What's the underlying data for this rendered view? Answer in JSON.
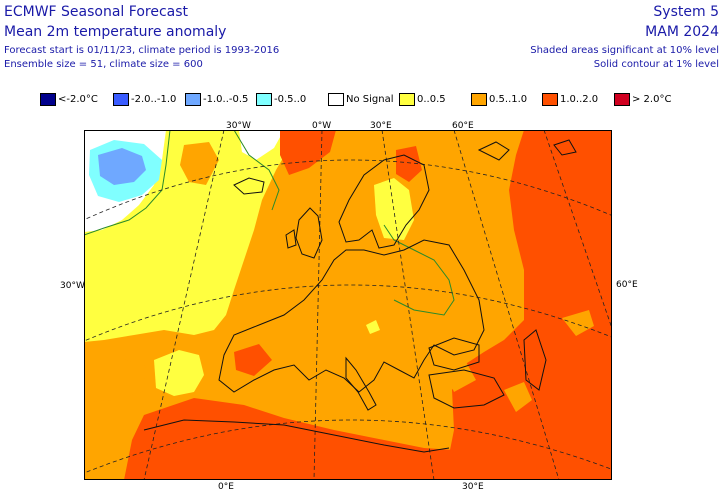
{
  "header": {
    "title": "ECMWF Seasonal Forecast",
    "subtitle": "Mean 2m temperature anomaly",
    "forecast_info": "Forecast start is 01/11/23, climate period is 1993-2016",
    "ensemble_info": "Ensemble size = 51, climate size = 600",
    "system": "System 5",
    "period": "MAM 2024",
    "shading_note": "Shaded areas significant at 10% level",
    "contour_note": "Solid contour at 1% level"
  },
  "legend": [
    {
      "label": "<-2.0°C",
      "color": "#00008c"
    },
    {
      "label": "-2.0..-1.0",
      "color": "#3a5cff"
    },
    {
      "label": "-1.0..-0.5",
      "color": "#6fa8ff"
    },
    {
      "label": "-0.5..0",
      "color": "#80ffff"
    },
    {
      "label": "No Signal",
      "color": "#ffffff"
    },
    {
      "label": "0..0.5",
      "color": "#ffff40"
    },
    {
      "label": "0.5..1.0",
      "color": "#ffa500"
    },
    {
      "label": "1.0..2.0",
      "color": "#ff5000"
    },
    {
      "label": "> 2.0°C",
      "color": "#d00020"
    }
  ],
  "axis_labels": {
    "top": [
      "30°W",
      "0°W",
      "30°E",
      "60°E"
    ],
    "bottom": [
      "0°E",
      "30°E"
    ],
    "left": "30°W",
    "right": "60°E"
  },
  "colors": {
    "yellow": "#ffff40",
    "orange": "#ffa500",
    "red": "#ff5000",
    "cyan": "#80ffff",
    "blue_light": "#6fa8ff",
    "white": "#ffffff",
    "contour": "#2a8a2a"
  }
}
